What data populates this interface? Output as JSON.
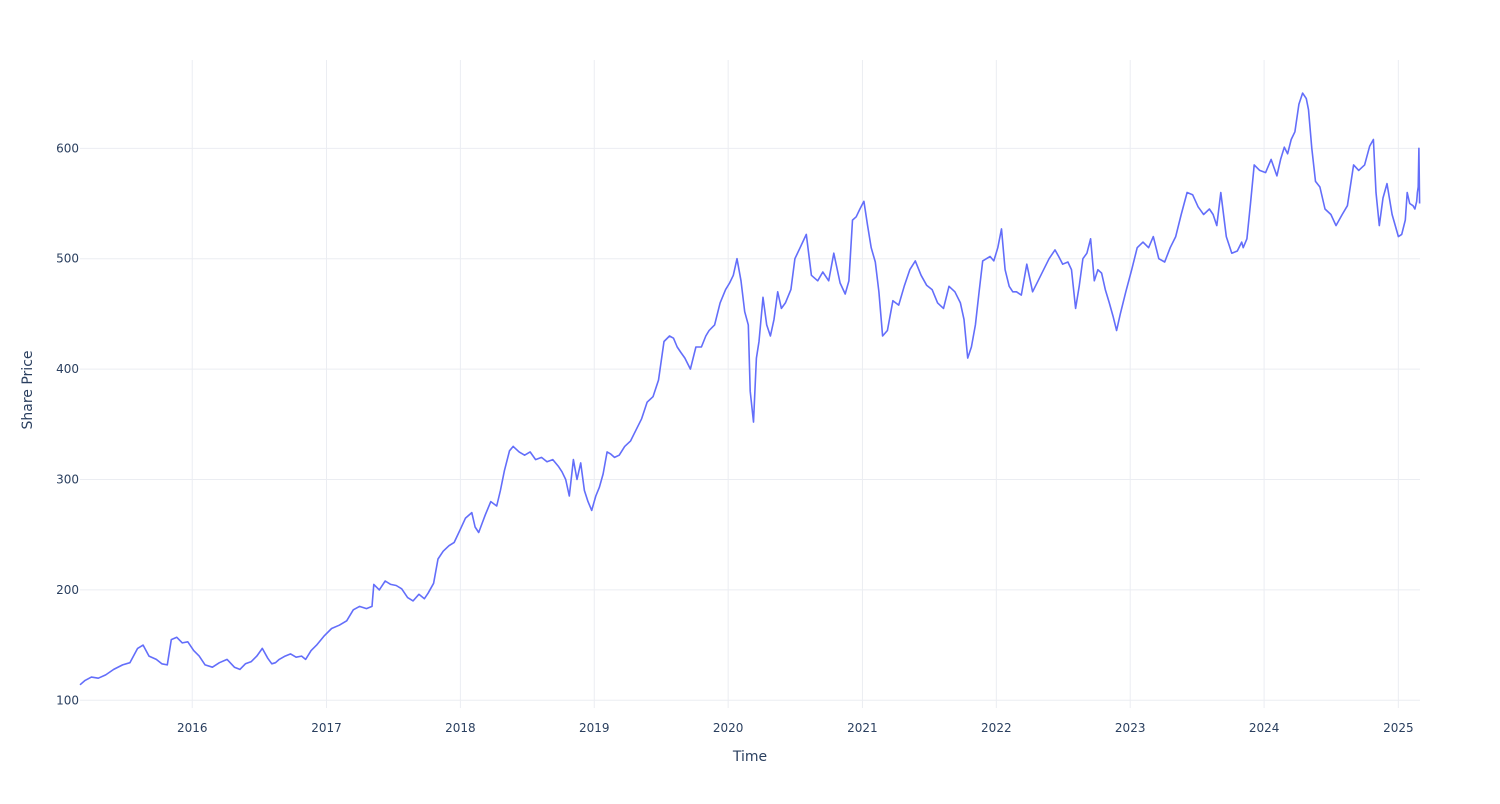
{
  "chart_data": {
    "type": "line",
    "xlabel": "Time",
    "ylabel": "Share Price",
    "xlim": [
      "2015-03-01",
      "2025-03-01"
    ],
    "ylim": [
      93,
      680
    ],
    "x_tick_labels": [
      "2016",
      "2017",
      "2018",
      "2019",
      "2020",
      "2021",
      "2022",
      "2023",
      "2024",
      "2025"
    ],
    "y_tick_values": [
      100,
      200,
      300,
      400,
      500,
      600
    ],
    "grid": true,
    "legend": "none",
    "colors": {
      "series": "#636efa",
      "grid": "#ebedf2",
      "text": "#2a3f5f",
      "background": "#ffffff"
    },
    "series": [
      {
        "x": [
          "2015-03-01",
          "2015-03-15",
          "2015-04-01",
          "2015-04-20",
          "2015-05-10",
          "2015-06-01",
          "2015-06-25",
          "2015-07-15",
          "2015-08-05",
          "2015-08-20",
          "2015-09-05",
          "2015-09-25",
          "2015-10-10",
          "2015-10-25",
          "2015-11-05",
          "2015-11-20",
          "2015-12-05",
          "2015-12-20",
          "2016-01-05",
          "2016-01-20",
          "2016-02-05",
          "2016-02-25",
          "2016-03-15",
          "2016-04-05",
          "2016-04-25",
          "2016-05-10",
          "2016-05-25",
          "2016-06-10",
          "2016-06-25",
          "2016-07-10",
          "2016-07-25",
          "2016-08-05",
          "2016-08-15",
          "2016-08-25",
          "2016-09-10",
          "2016-09-25",
          "2016-10-10",
          "2016-10-25",
          "2016-11-05",
          "2016-11-20",
          "2016-12-05",
          "2016-12-25",
          "2017-01-15",
          "2017-02-05",
          "2017-02-25",
          "2017-03-15",
          "2017-04-01",
          "2017-04-20",
          "2017-05-05",
          "2017-05-10",
          "2017-05-25",
          "2017-06-10",
          "2017-06-25",
          "2017-07-10",
          "2017-07-25",
          "2017-08-10",
          "2017-08-25",
          "2017-09-10",
          "2017-09-25",
          "2017-10-05",
          "2017-10-20",
          "2017-11-01",
          "2017-11-15",
          "2017-12-01",
          "2017-12-15",
          "2018-01-01",
          "2018-01-15",
          "2018-02-01",
          "2018-02-10",
          "2018-02-20",
          "2018-03-01",
          "2018-03-10",
          "2018-03-25",
          "2018-04-10",
          "2018-04-20",
          "2018-05-01",
          "2018-05-15",
          "2018-05-25",
          "2018-06-10",
          "2018-06-25",
          "2018-07-10",
          "2018-07-25",
          "2018-08-10",
          "2018-08-25",
          "2018-09-10",
          "2018-09-25",
          "2018-10-05",
          "2018-10-15",
          "2018-10-25",
          "2018-11-05",
          "2018-11-15",
          "2018-11-25",
          "2018-12-05",
          "2018-12-15",
          "2018-12-25",
          "2019-01-05",
          "2019-01-15",
          "2019-01-25",
          "2019-02-05",
          "2019-02-15",
          "2019-02-25",
          "2019-03-10",
          "2019-03-25",
          "2019-04-10",
          "2019-04-25",
          "2019-05-10",
          "2019-05-25",
          "2019-06-10",
          "2019-06-25",
          "2019-07-10",
          "2019-07-25",
          "2019-08-05",
          "2019-08-15",
          "2019-08-25",
          "2019-09-05",
          "2019-09-20",
          "2019-10-05",
          "2019-10-20",
          "2019-11-01",
          "2019-11-10",
          "2019-11-25",
          "2019-12-10",
          "2019-12-25",
          "2020-01-05",
          "2020-01-15",
          "2020-01-25",
          "2020-02-05",
          "2020-02-15",
          "2020-02-25",
          "2020-03-01",
          "2020-03-10",
          "2020-03-18",
          "2020-03-25",
          "2020-04-05",
          "2020-04-15",
          "2020-04-25",
          "2020-05-05",
          "2020-05-15",
          "2020-05-25",
          "2020-06-05",
          "2020-06-20",
          "2020-07-01",
          "2020-07-15",
          "2020-08-01",
          "2020-08-15",
          "2020-09-01",
          "2020-09-15",
          "2020-10-01",
          "2020-10-15",
          "2020-11-01",
          "2020-11-15",
          "2020-11-25",
          "2020-12-05",
          "2020-12-15",
          "2020-12-25",
          "2021-01-05",
          "2021-01-15",
          "2021-01-25",
          "2021-02-05",
          "2021-02-15",
          "2021-02-25",
          "2021-03-10",
          "2021-03-25",
          "2021-04-10",
          "2021-04-25",
          "2021-05-10",
          "2021-05-25",
          "2021-06-10",
          "2021-06-25",
          "2021-07-10",
          "2021-07-25",
          "2021-08-10",
          "2021-08-25",
          "2021-09-10",
          "2021-09-25",
          "2021-10-05",
          "2021-10-15",
          "2021-10-25",
          "2021-11-05",
          "2021-11-15",
          "2021-11-25",
          "2021-12-05",
          "2021-12-15",
          "2021-12-25",
          "2022-01-05",
          "2022-01-15",
          "2022-01-25",
          "2022-02-05",
          "2022-02-15",
          "2022-02-25",
          "2022-03-10",
          "2022-03-25",
          "2022-04-10",
          "2022-04-25",
          "2022-05-10",
          "2022-05-25",
          "2022-06-10",
          "2022-06-20",
          "2022-07-01",
          "2022-07-15",
          "2022-07-25",
          "2022-08-05",
          "2022-08-15",
          "2022-08-25",
          "2022-09-05",
          "2022-09-15",
          "2022-09-25",
          "2022-10-05",
          "2022-10-15",
          "2022-10-25",
          "2022-11-05",
          "2022-11-15",
          "2022-11-25",
          "2022-12-05",
          "2022-12-20",
          "2023-01-05",
          "2023-01-20",
          "2023-02-05",
          "2023-02-20",
          "2023-03-05",
          "2023-03-20",
          "2023-04-05",
          "2023-04-20",
          "2023-05-05",
          "2023-05-20",
          "2023-06-05",
          "2023-06-20",
          "2023-07-05",
          "2023-07-20",
          "2023-08-05",
          "2023-08-15",
          "2023-08-25",
          "2023-09-05",
          "2023-09-20",
          "2023-10-05",
          "2023-10-20",
          "2023-11-01",
          "2023-11-05",
          "2023-11-15",
          "2023-11-25",
          "2023-12-05",
          "2023-12-20",
          "2024-01-05",
          "2024-01-20",
          "2024-02-05",
          "2024-02-15",
          "2024-02-25",
          "2024-03-05",
          "2024-03-15",
          "2024-03-25",
          "2024-04-05",
          "2024-04-15",
          "2024-04-25",
          "2024-05-01",
          "2024-05-10",
          "2024-05-20",
          "2024-06-01",
          "2024-06-15",
          "2024-07-01",
          "2024-07-15",
          "2024-08-01",
          "2024-08-15",
          "2024-09-01",
          "2024-09-15",
          "2024-10-01",
          "2024-10-15",
          "2024-10-25",
          "2024-11-01",
          "2024-11-10",
          "2024-11-20",
          "2024-12-01",
          "2024-12-15",
          "2025-01-01",
          "2025-01-10",
          "2025-01-20",
          "2025-01-25",
          "2025-02-01",
          "2025-02-10",
          "2025-02-15",
          "2025-02-20",
          "2025-02-22",
          "2025-02-24",
          "2025-02-26",
          "2025-02-28"
        ],
        "y": [
          114,
          118,
          121,
          120,
          123,
          128,
          132,
          134,
          147,
          150,
          140,
          137,
          133,
          132,
          155,
          157,
          152,
          153,
          145,
          140,
          132,
          130,
          134,
          137,
          130,
          128,
          133,
          135,
          140,
          147,
          138,
          133,
          134,
          137,
          140,
          142,
          139,
          140,
          137,
          145,
          150,
          158,
          165,
          168,
          172,
          182,
          185,
          183,
          185,
          205,
          200,
          208,
          205,
          204,
          201,
          193,
          190,
          196,
          192,
          197,
          206,
          228,
          235,
          240,
          243,
          255,
          265,
          270,
          257,
          252,
          260,
          268,
          280,
          276,
          290,
          308,
          326,
          330,
          325,
          322,
          325,
          318,
          320,
          316,
          318,
          312,
          307,
          300,
          285,
          318,
          300,
          315,
          290,
          280,
          272,
          285,
          293,
          305,
          325,
          323,
          320,
          322,
          330,
          335,
          345,
          355,
          370,
          375,
          390,
          425,
          430,
          428,
          420,
          415,
          410,
          400,
          420,
          420,
          430,
          435,
          440,
          460,
          472,
          478,
          485,
          500,
          480,
          452,
          440,
          380,
          352,
          410,
          425,
          465,
          440,
          430,
          445,
          470,
          455,
          460,
          472,
          500,
          510,
          522,
          485,
          480,
          488,
          480,
          505,
          478,
          468,
          480,
          535,
          538,
          545,
          552,
          530,
          510,
          497,
          470,
          430,
          435,
          462,
          458,
          475,
          490,
          498,
          485,
          476,
          472,
          460,
          455,
          475,
          470,
          460,
          445,
          410,
          420,
          440,
          470,
          498,
          500,
          502,
          498,
          510,
          527,
          490,
          475,
          470,
          470,
          467,
          495,
          470,
          480,
          490,
          500,
          508,
          502,
          495,
          497,
          490,
          455,
          475,
          500,
          505,
          518,
          480,
          490,
          487,
          472,
          460,
          448,
          435,
          450,
          470,
          490,
          510,
          515,
          510,
          520,
          500,
          497,
          510,
          520,
          540,
          560,
          558,
          547,
          540,
          545,
          540,
          530,
          560,
          520,
          505,
          507,
          515,
          510,
          518,
          550,
          585,
          580,
          578,
          590,
          575,
          590,
          601,
          595,
          608,
          615,
          640,
          650,
          645,
          635,
          600,
          570,
          565,
          545,
          540,
          530,
          540,
          548,
          585,
          580,
          585,
          602,
          608,
          560,
          530,
          555,
          568,
          540,
          520,
          522,
          535,
          560,
          550,
          548,
          545,
          552,
          560,
          565,
          600,
          550
        ]
      }
    ]
  }
}
